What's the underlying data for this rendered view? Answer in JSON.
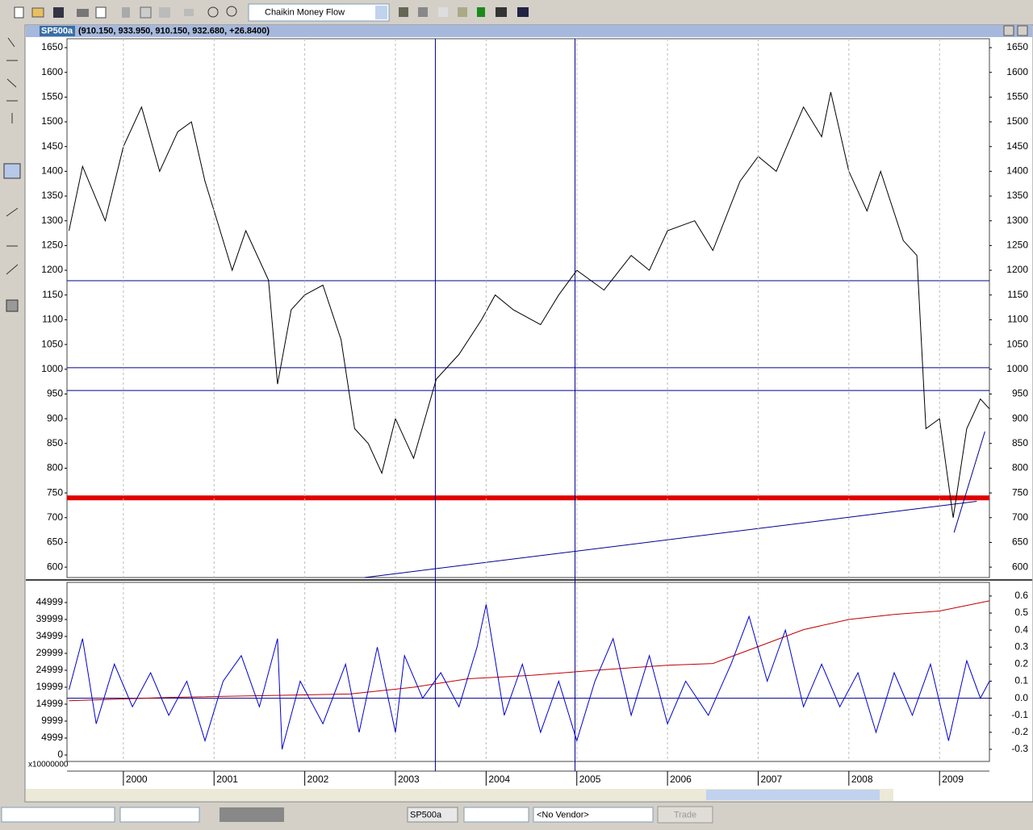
{
  "toolbar": {
    "indicator": "Chaikin Money Flow",
    "symbol": "SP500a",
    "vendor": "<No Vendor>",
    "trade": "Trade"
  },
  "window": {
    "title": "SP500a",
    "quote": "(910.150, 933.950, 910.150, 932.680, +26.8400)"
  },
  "chart_data": [
    {
      "type": "line",
      "color": "#000000",
      "x": [
        1999.4,
        1999.55,
        1999.8,
        2000.0,
        2000.2,
        2000.4,
        2000.6,
        2000.75,
        2000.9,
        2001.0,
        2001.2,
        2001.35,
        2001.6,
        2001.7,
        2001.85,
        2002.0,
        2002.2,
        2002.4,
        2002.55,
        2002.7,
        2002.85,
        2003.0,
        2003.2,
        2003.45,
        2003.7,
        2003.95,
        2004.1,
        2004.3,
        2004.6,
        2004.8,
        2005.0,
        2005.3,
        2005.6,
        2005.8,
        2006.0,
        2006.3,
        2006.5,
        2006.8,
        2007.0,
        2007.2,
        2007.5,
        2007.7,
        2007.8,
        2008.0,
        2008.2,
        2008.35,
        2008.6,
        2008.75,
        2008.85,
        2009.0,
        2009.15,
        2009.3,
        2009.45,
        2009.55
      ],
      "values": [
        1280,
        1410,
        1300,
        1450,
        1530,
        1400,
        1480,
        1500,
        1380,
        1320,
        1200,
        1280,
        1180,
        970,
        1120,
        1150,
        1170,
        1060,
        880,
        850,
        790,
        900,
        820,
        980,
        1030,
        1100,
        1150,
        1120,
        1090,
        1150,
        1200,
        1160,
        1230,
        1200,
        1280,
        1300,
        1240,
        1380,
        1430,
        1400,
        1530,
        1470,
        1560,
        1400,
        1320,
        1400,
        1260,
        1230,
        880,
        900,
        700,
        880,
        940,
        920
      ],
      "xlim": [
        1999.378,
        2009.55
      ],
      "ylim": [
        579,
        1668
      ],
      "yticks": [
        600,
        650,
        700,
        750,
        800,
        850,
        900,
        950,
        1000,
        1050,
        1100,
        1150,
        1200,
        1250,
        1300,
        1350,
        1400,
        1450,
        1500,
        1550,
        1600,
        1650
      ],
      "horizontal_lines": [
        {
          "value": 1179,
          "color": "#00008b"
        },
        {
          "value": 1003,
          "color": "#00008b"
        },
        {
          "value": 957,
          "color": "#00008b"
        },
        {
          "value": 740,
          "color": "#e00000"
        }
      ],
      "vertical_lines": [
        2003.44,
        2004.98
      ],
      "trend_lines": [
        {
          "x": [
            2002.66,
            2009.41
          ],
          "y": [
            579,
            733
          ],
          "color": "#00008b"
        },
        {
          "x": [
            2009.16,
            2009.5
          ],
          "y": [
            670,
            874
          ],
          "color": "#00008b"
        }
      ]
    },
    {
      "type": "line",
      "unit_label": "x10000000",
      "xlim": [
        1999.378,
        2009.55
      ],
      "xticks": [
        2000,
        2001,
        2002,
        2003,
        2004,
        2005,
        2006,
        2007,
        2008,
        2009
      ],
      "ylim": [
        -1905,
        50951
      ],
      "yticks": [
        0,
        4999,
        9999,
        14999,
        19999,
        24999,
        29999,
        34999,
        39999,
        44999
      ],
      "y2lim": [
        -0.371,
        0.68
      ],
      "y2ticks": [
        -0.3,
        -0.2,
        -0.1,
        {
          "value": 0,
          "label": "0.0"
        },
        0.1,
        0.2,
        0.3,
        0.4,
        0.5,
        0.6
      ],
      "series": [
        {
          "color": "#c00000",
          "x": [
            1999.4,
            2000.5,
            2001.5,
            2002.5,
            2003.2,
            2003.8,
            2004.5,
            2005.2,
            2006.0,
            2006.5,
            2007.0,
            2007.5,
            2008.0,
            2008.5,
            2009.0,
            2009.55
          ],
          "values": [
            16000,
            17000,
            17500,
            18000,
            20000,
            22500,
            23500,
            25000,
            26500,
            27000,
            32000,
            37000,
            40000,
            41500,
            42500,
            45500
          ]
        },
        {
          "color": "#0000cc",
          "axis": "y2",
          "x": [
            1999.4,
            1999.55,
            1999.7,
            1999.9,
            2000.1,
            2000.3,
            2000.5,
            2000.7,
            2000.9,
            2001.1,
            2001.3,
            2001.5,
            2001.7,
            2001.75,
            2001.95,
            2002.2,
            2002.45,
            2002.6,
            2002.8,
            2003.0,
            2003.1,
            2003.3,
            2003.5,
            2003.7,
            2003.9,
            2004.0,
            2004.2,
            2004.4,
            2004.6,
            2004.8,
            2005.0,
            2005.2,
            2005.4,
            2005.6,
            2005.8,
            2006.0,
            2006.2,
            2006.45,
            2006.7,
            2006.9,
            2007.1,
            2007.3,
            2007.5,
            2007.7,
            2007.9,
            2008.1,
            2008.3,
            2008.5,
            2008.7,
            2008.9,
            2009.1,
            2009.3,
            2009.45,
            2009.55
          ],
          "values": [
            0.05,
            0.35,
            -0.15,
            0.2,
            -0.05,
            0.15,
            -0.1,
            0.1,
            -0.25,
            0.1,
            0.25,
            -0.05,
            0.35,
            -0.3,
            0.1,
            -0.15,
            0.2,
            -0.2,
            0.3,
            -0.2,
            0.25,
            0.0,
            0.15,
            -0.05,
            0.3,
            0.55,
            -0.1,
            0.2,
            -0.2,
            0.1,
            -0.25,
            0.1,
            0.35,
            -0.1,
            0.25,
            -0.15,
            0.1,
            -0.1,
            0.2,
            0.48,
            0.1,
            0.4,
            -0.05,
            0.2,
            -0.05,
            0.15,
            -0.2,
            0.15,
            -0.1,
            0.2,
            -0.25,
            0.22,
            0.0,
            0.1
          ]
        }
      ]
    }
  ]
}
